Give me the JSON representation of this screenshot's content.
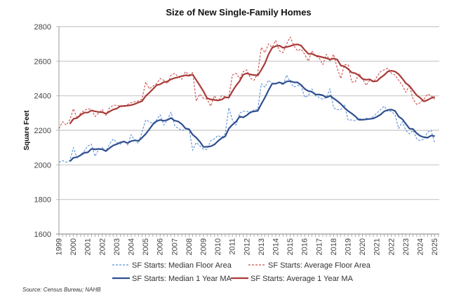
{
  "chart_data": {
    "type": "line",
    "title": "Size of New Single-Family Homes",
    "xlabel": "",
    "ylabel": "Square Feet",
    "ylim": [
      1600,
      2800
    ],
    "yticks": [
      "1600",
      "1800",
      "2000",
      "2200",
      "2400",
      "2600",
      "2800"
    ],
    "x_start": "1999 Q1",
    "frequency": "quarterly",
    "xticks": [
      "1999",
      "2000",
      "2001",
      "2002",
      "2003",
      "2004",
      "2005",
      "2006",
      "2007",
      "2008",
      "2009",
      "2010",
      "2011",
      "2012",
      "2013",
      "2014",
      "2015",
      "2016",
      "2017",
      "2018",
      "2019",
      "2020",
      "2021",
      "2022",
      "2023",
      "2024",
      "2025"
    ],
    "grid": "horizontal",
    "legend_placement": "bottom",
    "ma_window_quarters": 4,
    "series": [
      {
        "name": "SF Starts: Median Floor Area",
        "color": "#5b8fd6",
        "style": "dashed",
        "values": [
          2015,
          2025,
          2015,
          2025,
          2100,
          2040,
          2060,
          2080,
          2110,
          2120,
          2050,
          2090,
          2100,
          2080,
          2120,
          2150,
          2130,
          2120,
          2140,
          2115,
          2175,
          2140,
          2125,
          2190,
          2260,
          2250,
          2240,
          2260,
          2290,
          2230,
          2260,
          2305,
          2230,
          2210,
          2200,
          2205,
          2210,
          2085,
          2130,
          2110,
          2090,
          2090,
          2140,
          2150,
          2170,
          2160,
          2180,
          2330,
          2260,
          2230,
          2300,
          2310,
          2310,
          2300,
          2320,
          2320,
          2470,
          2450,
          2490,
          2470,
          2470,
          2480,
          2460,
          2520,
          2480,
          2450,
          2460,
          2460,
          2390,
          2400,
          2440,
          2400,
          2390,
          2380,
          2390,
          2440,
          2330,
          2320,
          2320,
          2350,
          2260,
          2260,
          2255,
          2270,
          2260,
          2270,
          2265,
          2280,
          2300,
          2320,
          2340,
          2310,
          2310,
          2290,
          2210,
          2250,
          2200,
          2180,
          2200,
          2150,
          2140,
          2150,
          2190,
          2200,
          2125
        ]
      },
      {
        "name": "SF Starts: Average Floor Area",
        "color": "#c9504d",
        "style": "dashed",
        "values": [
          2210,
          2250,
          2230,
          2260,
          2325,
          2270,
          2300,
          2315,
          2325,
          2320,
          2280,
          2300,
          2320,
          2285,
          2330,
          2345,
          2345,
          2340,
          2335,
          2350,
          2360,
          2365,
          2370,
          2380,
          2480,
          2440,
          2455,
          2470,
          2500,
          2490,
          2470,
          2520,
          2530,
          2510,
          2495,
          2540,
          2520,
          2535,
          2370,
          2410,
          2385,
          2380,
          2340,
          2400,
          2370,
          2400,
          2395,
          2390,
          2520,
          2530,
          2500,
          2540,
          2550,
          2500,
          2490,
          2530,
          2680,
          2650,
          2700,
          2680,
          2720,
          2660,
          2650,
          2700,
          2740,
          2690,
          2660,
          2670,
          2640,
          2600,
          2660,
          2630,
          2620,
          2580,
          2640,
          2600,
          2640,
          2560,
          2500,
          2580,
          2580,
          2480,
          2480,
          2530,
          2500,
          2460,
          2490,
          2480,
          2510,
          2540,
          2550,
          2560,
          2530,
          2520,
          2490,
          2460,
          2420,
          2460,
          2380,
          2350,
          2360,
          2380,
          2410,
          2400,
          2380
        ]
      },
      {
        "name": "SF Starts: Median 1 Year MA",
        "color": "#2f4f8f",
        "style": "solid",
        "source": "SF Starts: Median Floor Area"
      },
      {
        "name": "SF Starts: Average 1 Year MA",
        "color": "#a83a37",
        "style": "solid",
        "source": "SF Starts: Average Floor Area"
      }
    ],
    "source_note": "Source: Census Bureau; NAHB"
  }
}
